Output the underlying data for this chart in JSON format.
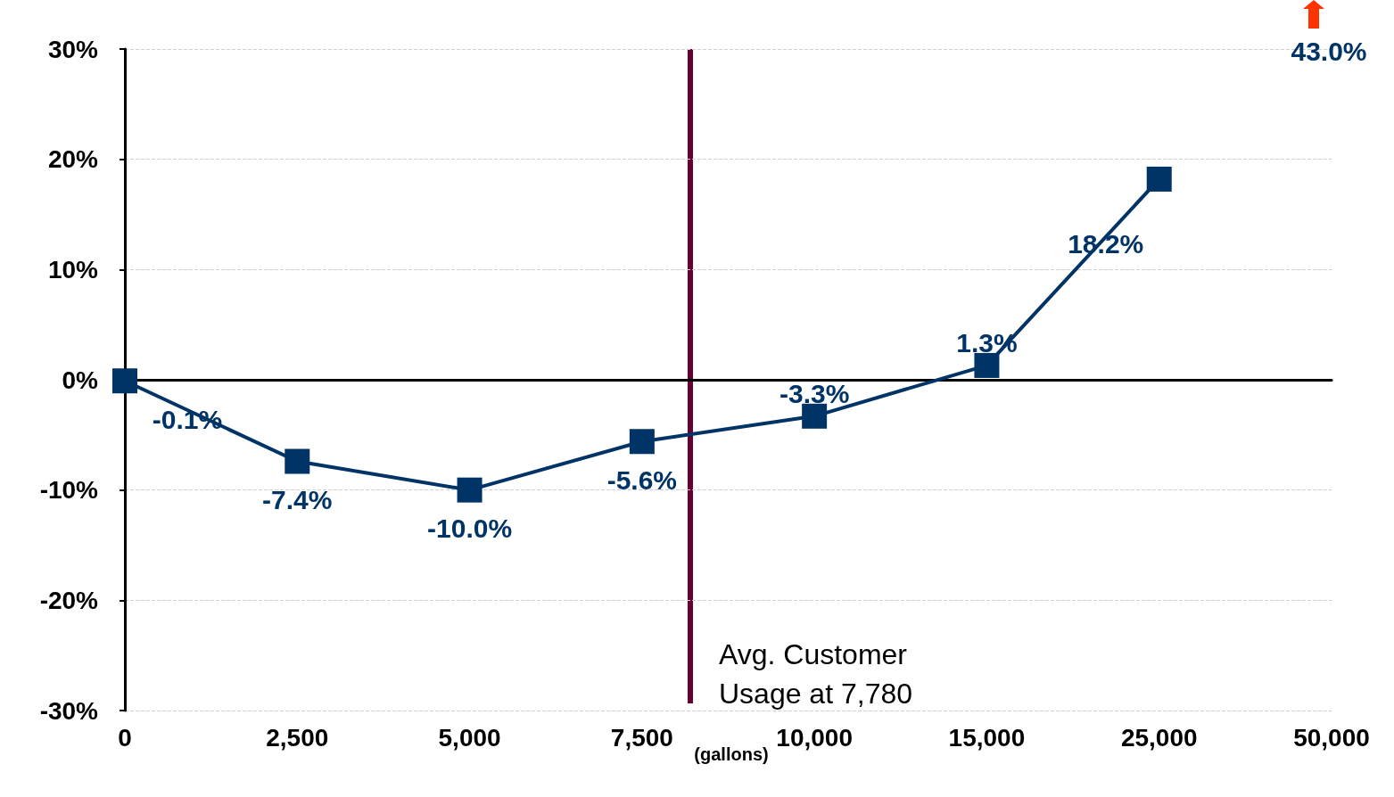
{
  "chart_data": {
    "type": "line",
    "categories": [
      "0",
      "2,500",
      "5,000",
      "7,500",
      "10,000",
      "15,000",
      "25,000",
      "50,000"
    ],
    "series": [
      {
        "color": "#003366",
        "values": [
          -0.1,
          -7.4,
          -10.0,
          -5.6,
          -3.3,
          1.3,
          18.2,
          null
        ],
        "value_labels": [
          "-0.1%",
          "-7.4%",
          "-10.0%",
          "-5.6%",
          "-3.3%",
          "1.3%",
          "18.2%",
          null
        ]
      }
    ],
    "ylim": [
      -30,
      30
    ],
    "yticks": [
      {
        "value": -30,
        "label": "-30%"
      },
      {
        "value": -20,
        "label": "-20%"
      },
      {
        "value": -10,
        "label": "-10%"
      },
      {
        "value": 0,
        "label": "0%"
      },
      {
        "value": 10,
        "label": "10%"
      },
      {
        "value": 20,
        "label": "20%"
      },
      {
        "value": 30,
        "label": "30%"
      }
    ],
    "grid": "y",
    "marker": "square",
    "line_style": "solid",
    "annotations": [
      "Avg. Customer Usage at 7,780",
      "43.0%",
      "(gallons)"
    ]
  }
}
